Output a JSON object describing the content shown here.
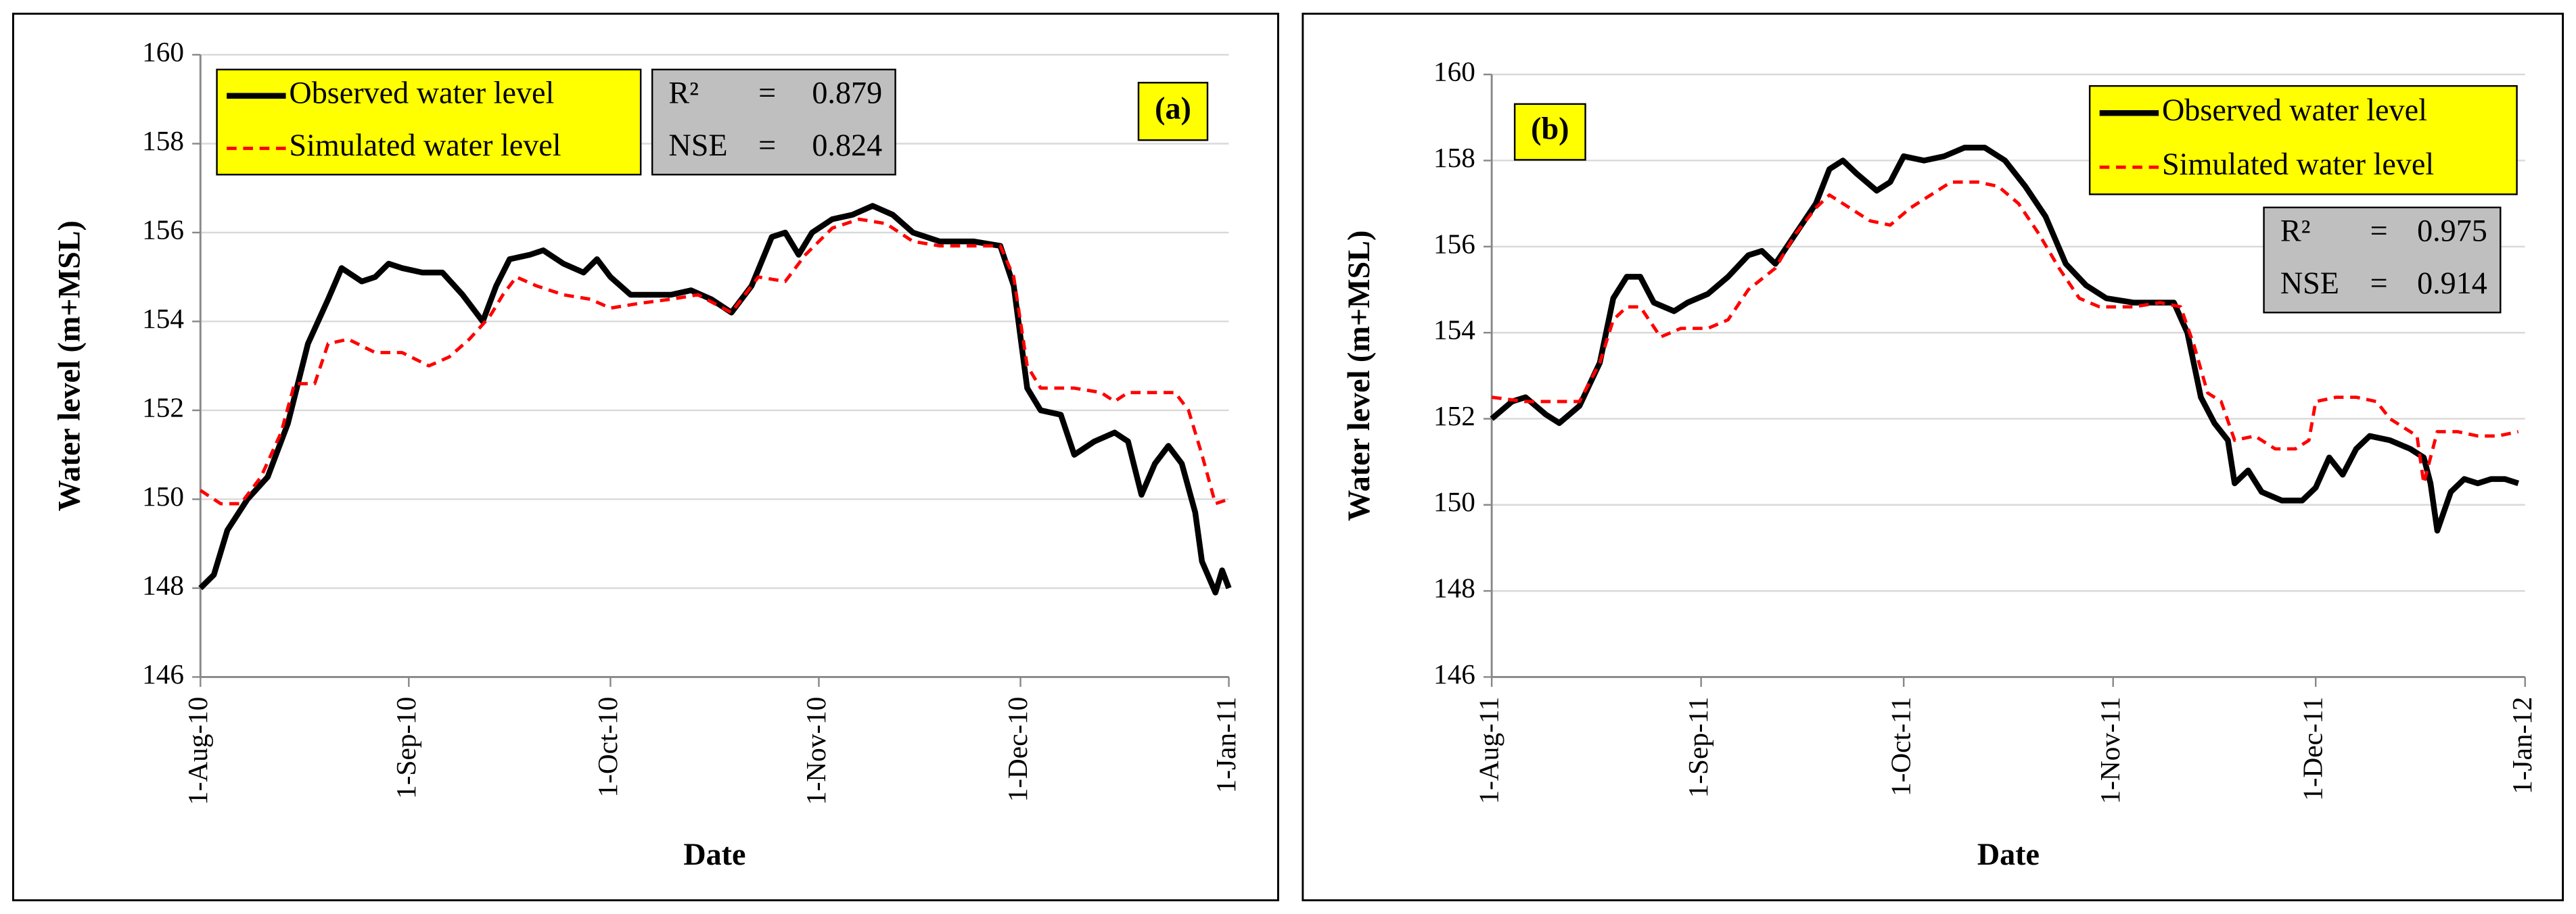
{
  "chart_data": [
    {
      "type": "line",
      "panel_label": "(a)",
      "xlabel": "Date",
      "ylabel": "Water level (m+MSL)",
      "xlim": [
        0,
        153
      ],
      "xticks": [
        {
          "value": 0,
          "label": "1-Aug-10"
        },
        {
          "value": 31,
          "label": "1-Sep-10"
        },
        {
          "value": 61,
          "label": "1-Oct-10"
        },
        {
          "value": 92,
          "label": "1-Nov-10"
        },
        {
          "value": 122,
          "label": "1-Dec-10"
        },
        {
          "value": 153,
          "label": "1-Jan-11"
        }
      ],
      "ylim": [
        146,
        160
      ],
      "yticks": [
        146,
        148,
        150,
        152,
        154,
        156,
        158,
        160
      ],
      "grid": true,
      "series": [
        {
          "name": "Observed water level",
          "color": "#000000",
          "style": "solid",
          "x": [
            0,
            2,
            4,
            7,
            10,
            13,
            16,
            19,
            21,
            24,
            26,
            28,
            30,
            33,
            36,
            39,
            42,
            44,
            46,
            49,
            51,
            54,
            57,
            59,
            61,
            64,
            67,
            70,
            73,
            76,
            79,
            82,
            85,
            87,
            89,
            91,
            94,
            97,
            100,
            103,
            106,
            110,
            115,
            119,
            121,
            123,
            125,
            128,
            130,
            133,
            136,
            138,
            140,
            142,
            144,
            146,
            148,
            149,
            151,
            152,
            153
          ],
          "values": [
            148.0,
            148.3,
            149.3,
            150.0,
            150.5,
            151.7,
            153.5,
            154.5,
            155.2,
            154.9,
            155.0,
            155.3,
            155.2,
            155.1,
            155.1,
            154.6,
            154.0,
            154.8,
            155.4,
            155.5,
            155.6,
            155.3,
            155.1,
            155.4,
            155.0,
            154.6,
            154.6,
            154.6,
            154.7,
            154.5,
            154.2,
            154.8,
            155.9,
            156.0,
            155.5,
            156.0,
            156.3,
            156.4,
            156.6,
            156.4,
            156.0,
            155.8,
            155.8,
            155.7,
            154.8,
            152.5,
            152.0,
            151.9,
            151.0,
            151.3,
            151.5,
            151.3,
            150.1,
            150.8,
            151.2,
            150.8,
            149.7,
            148.6,
            147.9,
            148.4,
            148.0
          ]
        },
        {
          "name": "Simulated water level",
          "color": "#ff0000",
          "style": "dashed",
          "x": [
            0,
            3,
            6,
            9,
            12,
            14,
            17,
            19,
            22,
            26,
            30,
            34,
            37,
            40,
            43,
            45,
            47,
            50,
            54,
            58,
            61,
            65,
            70,
            74,
            79,
            83,
            87,
            90,
            94,
            98,
            102,
            106,
            110,
            115,
            119,
            121,
            123,
            125,
            130,
            134,
            136,
            138,
            142,
            145,
            147,
            149,
            151,
            153
          ],
          "values": [
            150.2,
            149.9,
            149.9,
            150.5,
            151.5,
            152.6,
            152.6,
            153.5,
            153.6,
            153.3,
            153.3,
            153.0,
            153.2,
            153.6,
            154.1,
            154.6,
            155.0,
            154.8,
            154.6,
            154.5,
            154.3,
            154.4,
            154.5,
            154.6,
            154.2,
            155.0,
            154.9,
            155.5,
            156.1,
            156.3,
            156.2,
            155.8,
            155.7,
            155.7,
            155.7,
            155.0,
            153.0,
            152.5,
            152.5,
            152.4,
            152.2,
            152.4,
            152.4,
            152.4,
            152.0,
            151.0,
            149.9,
            150.0
          ]
        }
      ],
      "stats": [
        {
          "label": "R²",
          "sep": "=",
          "value": 0.879
        },
        {
          "label": "NSE",
          "sep": "=",
          "value": 0.824
        }
      ]
    },
    {
      "type": "line",
      "panel_label": "(b)",
      "xlabel": "Date",
      "ylabel": "Water level (m+MSL)",
      "xlim": [
        0,
        153
      ],
      "xticks": [
        {
          "value": 0,
          "label": "1-Aug-11"
        },
        {
          "value": 31,
          "label": "1-Sep-11"
        },
        {
          "value": 61,
          "label": "1-Oct-11"
        },
        {
          "value": 92,
          "label": "1-Nov-11"
        },
        {
          "value": 122,
          "label": "1-Dec-11"
        },
        {
          "value": 153,
          "label": "1-Jan-12"
        }
      ],
      "ylim": [
        146,
        160
      ],
      "yticks": [
        146,
        148,
        150,
        152,
        154,
        156,
        158,
        160
      ],
      "grid": true,
      "series": [
        {
          "name": "Observed water level",
          "color": "#000000",
          "style": "solid",
          "x": [
            0,
            3,
            5,
            8,
            10,
            13,
            16,
            18,
            20,
            22,
            24,
            27,
            29,
            32,
            35,
            38,
            40,
            42,
            45,
            48,
            50,
            52,
            54,
            57,
            59,
            61,
            64,
            67,
            70,
            73,
            76,
            79,
            82,
            85,
            88,
            91,
            95,
            99,
            101,
            103,
            105,
            107,
            109,
            110,
            112,
            114,
            117,
            120,
            122,
            124,
            126,
            128,
            130,
            133,
            136,
            138,
            139,
            140,
            142,
            144,
            146,
            148,
            150,
            152
          ],
          "values": [
            152.0,
            152.4,
            152.5,
            152.1,
            151.9,
            152.3,
            153.3,
            154.8,
            155.3,
            155.3,
            154.7,
            154.5,
            154.7,
            154.9,
            155.3,
            155.8,
            155.9,
            155.6,
            156.3,
            157.0,
            157.8,
            158.0,
            157.7,
            157.3,
            157.5,
            158.1,
            158.0,
            158.1,
            158.3,
            158.3,
            158.0,
            157.4,
            156.7,
            155.6,
            155.1,
            154.8,
            154.7,
            154.7,
            154.7,
            154.0,
            152.5,
            151.9,
            151.5,
            150.5,
            150.8,
            150.3,
            150.1,
            150.1,
            150.4,
            151.1,
            150.7,
            151.3,
            151.6,
            151.5,
            151.3,
            151.1,
            150.5,
            149.4,
            150.3,
            150.6,
            150.5,
            150.6,
            150.6,
            150.5
          ]
        },
        {
          "name": "Simulated water level",
          "color": "#ff0000",
          "style": "dashed",
          "x": [
            0,
            5,
            10,
            13,
            16,
            18,
            20,
            22,
            25,
            28,
            32,
            35,
            38,
            42,
            45,
            48,
            50,
            53,
            56,
            59,
            62,
            65,
            68,
            72,
            75,
            78,
            81,
            84,
            87,
            90,
            95,
            99,
            102,
            104,
            106,
            108,
            110,
            113,
            116,
            119,
            121,
            122,
            125,
            128,
            131,
            133,
            135,
            137,
            138,
            140,
            143,
            146,
            149,
            152
          ],
          "values": [
            152.5,
            152.4,
            152.4,
            152.4,
            153.3,
            154.3,
            154.6,
            154.6,
            153.9,
            154.1,
            154.1,
            154.3,
            155.0,
            155.5,
            156.3,
            156.9,
            157.2,
            156.9,
            156.6,
            156.5,
            156.9,
            157.2,
            157.5,
            157.5,
            157.4,
            157.0,
            156.3,
            155.5,
            154.8,
            154.6,
            154.6,
            154.7,
            154.6,
            153.7,
            152.6,
            152.4,
            151.5,
            151.6,
            151.3,
            151.3,
            151.5,
            152.4,
            152.5,
            152.5,
            152.4,
            152.0,
            151.8,
            151.6,
            150.5,
            151.7,
            151.7,
            151.6,
            151.6,
            151.7
          ]
        }
      ],
      "stats": [
        {
          "label": "R²",
          "sep": "=",
          "value": 0.975
        },
        {
          "label": "NSE",
          "sep": "=",
          "value": 0.914
        }
      ]
    }
  ]
}
